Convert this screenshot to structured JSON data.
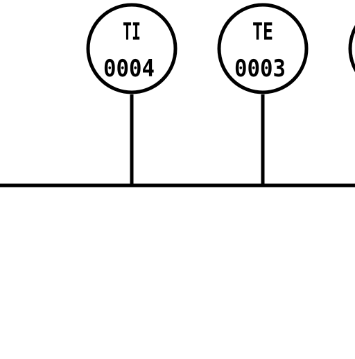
{
  "diagram": {
    "stroke_color": "#000000",
    "background_color": "#ffffff",
    "instruments": [
      {
        "tag": "TI",
        "number": "0004"
      },
      {
        "tag": "TE",
        "number": "0003"
      }
    ]
  }
}
